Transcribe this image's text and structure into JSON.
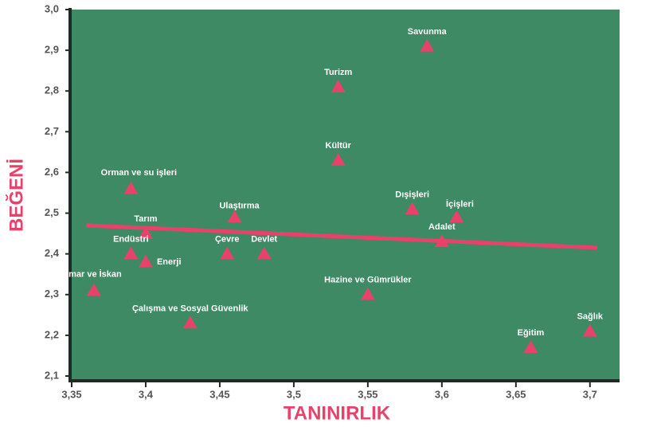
{
  "chart_data": {
    "type": "scatter",
    "x_label": "TANINIRLIK",
    "y_label": "BEĞENİ",
    "color": "#e8426b",
    "background": "#3d8a64",
    "points": [
      {
        "label": "Savunma",
        "x": 3.59,
        "y": 2.91
      },
      {
        "label": "Turizm",
        "x": 3.53,
        "y": 2.81
      },
      {
        "label": "Kültür",
        "x": 3.53,
        "y": 2.63
      },
      {
        "label": "Orman ve su işleri",
        "x": 3.39,
        "y": 2.56
      },
      {
        "label": "Dışişleri",
        "x": 3.58,
        "y": 2.51
      },
      {
        "label": "İçişleri",
        "x": 3.61,
        "y": 2.49
      },
      {
        "label": "Ulaştırma",
        "x": 3.46,
        "y": 2.49
      },
      {
        "label": "Tarım",
        "x": 3.4,
        "y": 2.45
      },
      {
        "label": "Adalet",
        "x": 3.6,
        "y": 2.43
      },
      {
        "label": "Endüstri",
        "x": 3.39,
        "y": 2.4
      },
      {
        "label": "Enerji",
        "x": 3.4,
        "y": 2.38
      },
      {
        "label": "Çevre",
        "x": 3.455,
        "y": 2.4
      },
      {
        "label": "Devlet",
        "x": 3.48,
        "y": 2.4
      },
      {
        "label": "İmar ve İskan",
        "x": 3.365,
        "y": 2.31
      },
      {
        "label": "Hazine ve Gümrükler",
        "x": 3.55,
        "y": 2.3
      },
      {
        "label": "Çalışma ve Sosyal Güvenlik",
        "x": 3.43,
        "y": 2.23
      },
      {
        "label": "Eğitim",
        "x": 3.66,
        "y": 2.17
      },
      {
        "label": "Sağlık",
        "x": 3.7,
        "y": 2.21
      }
    ],
    "trendline": {
      "x": [
        3.36,
        3.705
      ],
      "y": [
        2.47,
        2.415
      ]
    },
    "xlim": [
      3.35,
      3.72
    ],
    "ylim": [
      2.1,
      3.0
    ],
    "xticks": [
      {
        "value": 3.35,
        "label": "3,35"
      },
      {
        "value": 3.4,
        "label": "3,4"
      },
      {
        "value": 3.45,
        "label": "3,45"
      },
      {
        "value": 3.5,
        "label": "3,5"
      },
      {
        "value": 3.55,
        "label": "3,55"
      },
      {
        "value": 3.6,
        "label": "3,6"
      },
      {
        "value": 3.65,
        "label": "3,65"
      },
      {
        "value": 3.7,
        "label": "3,7"
      }
    ],
    "yticks": [
      {
        "value": 2.1,
        "label": "2,1"
      },
      {
        "value": 2.2,
        "label": "2,2"
      },
      {
        "value": 2.3,
        "label": "2,3"
      },
      {
        "value": 2.4,
        "label": "2,4"
      },
      {
        "value": 2.5,
        "label": "2,5"
      },
      {
        "value": 2.6,
        "label": "2,6"
      },
      {
        "value": 2.7,
        "label": "2,7"
      },
      {
        "value": 2.8,
        "label": "2,8"
      },
      {
        "value": 2.9,
        "label": "2,9"
      },
      {
        "value": 3.0,
        "label": "3,0"
      }
    ]
  }
}
